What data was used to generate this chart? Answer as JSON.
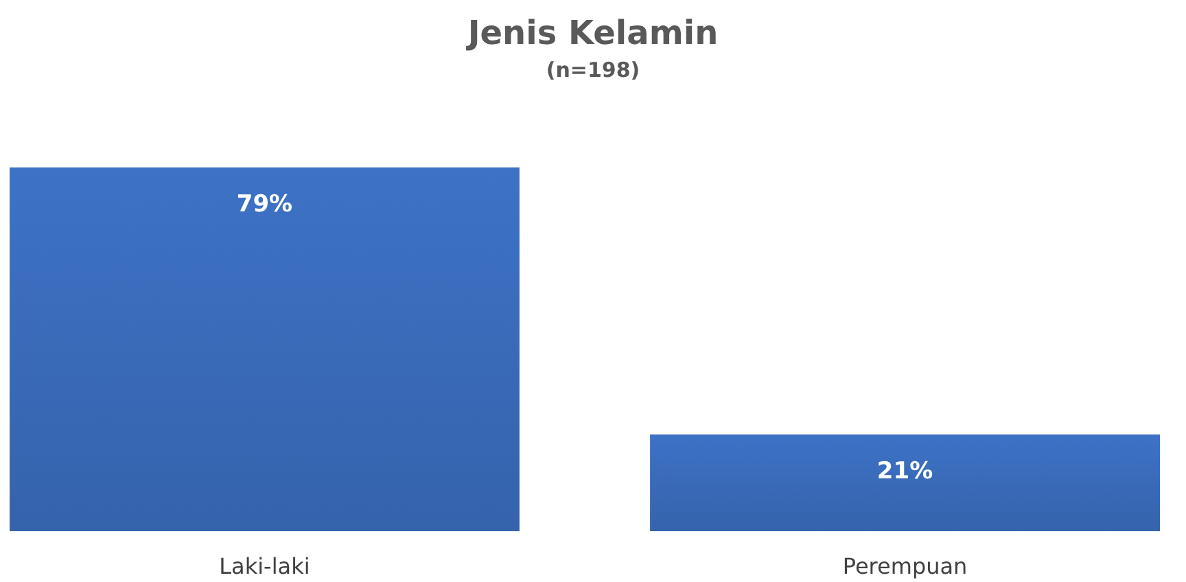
{
  "chart_data": {
    "type": "bar",
    "title": "Jenis Kelamin",
    "subtitle": "(n=198)",
    "categories": [
      "Laki-laki",
      "Perempuan"
    ],
    "values": [
      79,
      21
    ],
    "value_labels": [
      "79%",
      "21%"
    ],
    "color": "#3d72c6"
  }
}
